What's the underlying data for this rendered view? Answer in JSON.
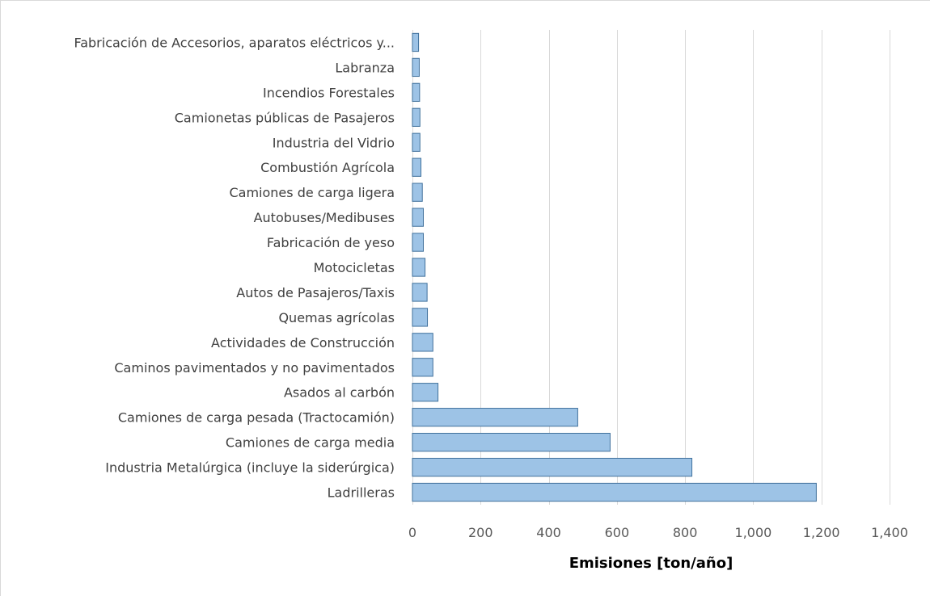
{
  "chart_data": {
    "type": "bar",
    "orientation": "horizontal",
    "categories": [
      "Fabricación de Accesorios, aparatos eléctricos y...",
      "Labranza",
      "Incendios Forestales",
      "Camionetas públicas de Pasajeros",
      "Industria del Vidrio",
      "Combustión Agrícola",
      "Camiones de carga ligera",
      "Autobuses/Medibuses",
      "Fabricación de yeso",
      "Motocicletas",
      "Autos de Pasajeros/Taxis",
      "Quemas agrícolas",
      "Actividades de Construcción",
      "Caminos pavimentados y no pavimentados",
      "Asados al carbón",
      "Camiones de carga pesada (Tractocamión)",
      "Camiones de carga media",
      "Industria Metalúrgica (incluye la siderúrgica)",
      "Ladrilleras"
    ],
    "values": [
      18,
      20,
      21,
      22,
      22,
      25,
      29,
      32,
      32,
      37,
      43,
      44,
      60,
      60,
      75,
      485,
      580,
      820,
      1185
    ],
    "xlabel": "Emisiones [ton/año]",
    "ylabel": "",
    "xlim": [
      0,
      1400
    ],
    "xticks": [
      0,
      200,
      400,
      600,
      800,
      1000,
      1200,
      1400
    ],
    "xtick_labels": [
      "0",
      "200",
      "400",
      "600",
      "800",
      "1,000",
      "1,200",
      "1,400"
    ],
    "grid": "vertical",
    "colors": {
      "bar_fill": "#9dc3e6",
      "bar_stroke": "#41719c",
      "grid": "#d9d9d9"
    }
  }
}
